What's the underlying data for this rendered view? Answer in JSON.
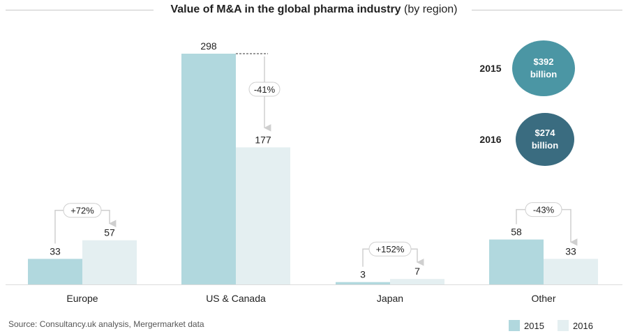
{
  "chart_data": {
    "type": "bar",
    "title_bold": "Value of M&A in the global pharma industry",
    "title_suffix": "(by region)",
    "categories": [
      "Europe",
      "US & Canada",
      "Japan",
      "Other"
    ],
    "series": [
      {
        "name": "2015",
        "values": [
          33,
          298,
          3,
          58
        ],
        "color": "#b1d8de"
      },
      {
        "name": "2016",
        "values": [
          57,
          177,
          7,
          33
        ],
        "color": "#e4eff1"
      }
    ],
    "changes": [
      "+72%",
      "-41%",
      "+152%",
      "-43%"
    ],
    "ylim": [
      0,
      298
    ],
    "totals": [
      {
        "year": "2015",
        "line1": "$392",
        "line2": "billion",
        "color": "#4b96a4"
      },
      {
        "year": "2016",
        "line1": "$274",
        "line2": "billion",
        "color": "#3a6c80"
      }
    ],
    "source": "Source: Consultancy.uk analysis, Mergermarket data"
  }
}
